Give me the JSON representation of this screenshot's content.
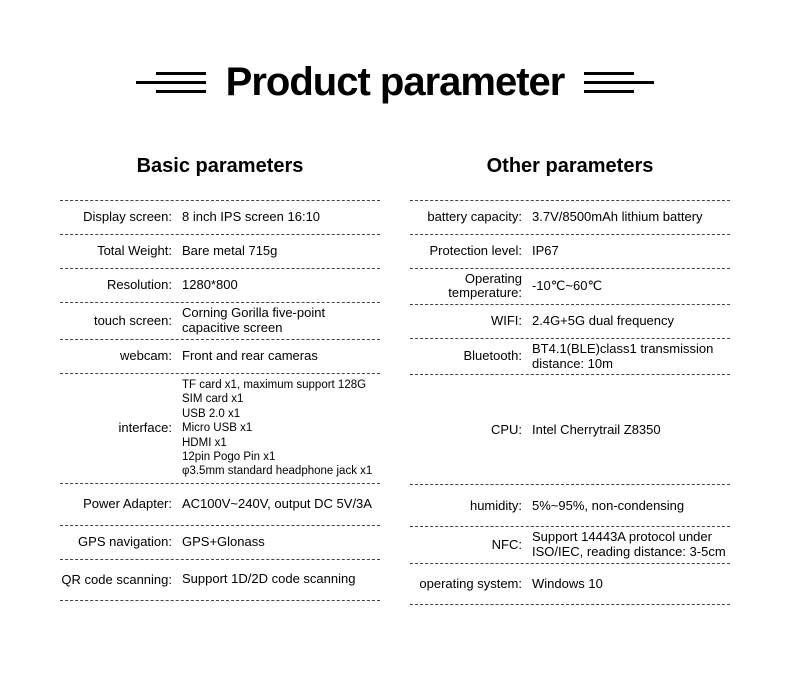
{
  "title": "Product parameter",
  "columns": {
    "left": {
      "header": "Basic parameters",
      "rows": [
        {
          "label": "Display screen:",
          "value": "8 inch IPS screen 16:10"
        },
        {
          "label": "Total Weight:",
          "value": "Bare metal 715g"
        },
        {
          "label": "Resolution:",
          "value": "1280*800"
        },
        {
          "label": "touch screen:",
          "value": "Corning Gorilla five-point capacitive screen"
        },
        {
          "label": "webcam:",
          "value": "Front and rear cameras"
        },
        {
          "label": "interface:",
          "value": "TF card x1, maximum support 128G\nSIM card x1\nUSB 2.0 x1\nMicro USB x1\nHDMI x1\n12pin Pogo Pin x1\nφ3.5mm standard headphone jack x1",
          "multi": true,
          "tall": true
        },
        {
          "label": "Power Adapter:",
          "value": "AC100V~240V,\noutput DC 5V/3A",
          "double": true
        },
        {
          "label": "GPS navigation:",
          "value": "GPS+Glonass"
        },
        {
          "label": "QR code scanning:",
          "value": "Support 1D/2D code scanning",
          "double": true
        }
      ]
    },
    "right": {
      "header": "Other parameters",
      "rows": [
        {
          "label": "battery capacity:",
          "value": "3.7V/8500mAh lithium battery"
        },
        {
          "label": "Protection level:",
          "value": "IP67"
        },
        {
          "label": "Operating temperature:",
          "value": "-10℃~60℃"
        },
        {
          "label": "WIFI:",
          "value": "2.4G+5G dual frequency"
        },
        {
          "label": "Bluetooth:",
          "value": "BT4.1(BLE)class1 transmission distance: 10m"
        },
        {
          "label": "CPU:",
          "value": "Intel Cherrytrail Z8350",
          "tall": true
        },
        {
          "label": "humidity:",
          "value": "5%~95%, non-condensing",
          "double": true
        },
        {
          "label": "NFC:",
          "value": "Support 14443A protocol under ISO/IEC, reading distance: 3-5cm"
        },
        {
          "label": "operating system:",
          "value": "Windows 10",
          "double": true
        }
      ]
    }
  }
}
